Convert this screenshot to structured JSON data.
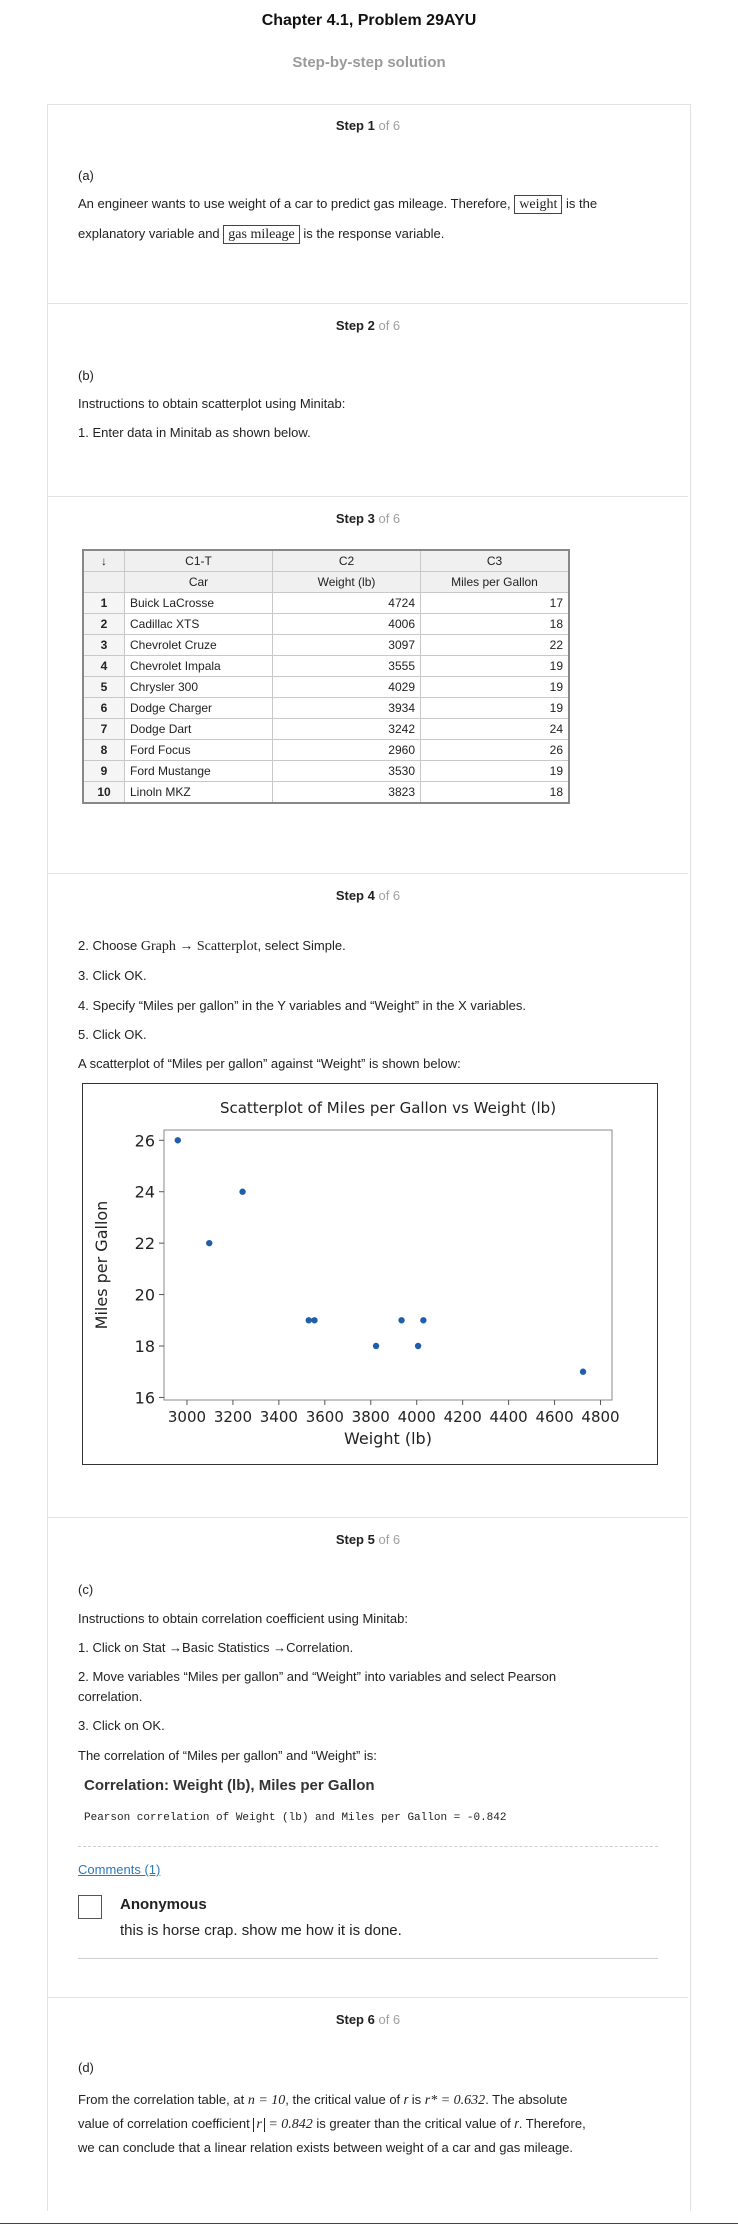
{
  "header": {
    "title": "Chapter 4.1, Problem 29AYU",
    "subtitle": "Step-by-step solution"
  },
  "steps": [
    {
      "num": "Step 1",
      "of": "of 6"
    },
    {
      "num": "Step 2",
      "of": "of 6"
    },
    {
      "num": "Step 3",
      "of": "of 6"
    },
    {
      "num": "Step 4",
      "of": "of 6"
    },
    {
      "num": "Step 5",
      "of": "of 6"
    },
    {
      "num": "Step 6",
      "of": "of 6"
    }
  ],
  "step1": {
    "part": "(a)",
    "t1": "An engineer wants to use weight of a car to predict gas mileage. Therefore,",
    "box1": "weight",
    "t2": "is the",
    "t3": "explanatory variable and",
    "box2": "gas mileage",
    "t4": "is the response variable."
  },
  "step2": {
    "part": "(b)",
    "line1": "Instructions to obtain scatterplot using Minitab:",
    "line2": "1. Enter data in Minitab as shown below."
  },
  "worksheet": {
    "corner": "↓",
    "col_ids": [
      "C1-T",
      "C2",
      "C3"
    ],
    "col_names": [
      "Car",
      "Weight (lb)",
      "Miles per Gallon"
    ],
    "rows": [
      {
        "n": "1",
        "car": "Buick LaCrosse",
        "weight": "4724",
        "mpg": "17"
      },
      {
        "n": "2",
        "car": "Cadillac XTS",
        "weight": "4006",
        "mpg": "18"
      },
      {
        "n": "3",
        "car": "Chevrolet Cruze",
        "weight": "3097",
        "mpg": "22"
      },
      {
        "n": "4",
        "car": "Chevrolet Impala",
        "weight": "3555",
        "mpg": "19"
      },
      {
        "n": "5",
        "car": "Chrysler 300",
        "weight": "4029",
        "mpg": "19"
      },
      {
        "n": "6",
        "car": "Dodge Charger",
        "weight": "3934",
        "mpg": "19"
      },
      {
        "n": "7",
        "car": "Dodge Dart",
        "weight": "3242",
        "mpg": "24"
      },
      {
        "n": "8",
        "car": "Ford Focus",
        "weight": "2960",
        "mpg": "26"
      },
      {
        "n": "9",
        "car": "Ford Mustange",
        "weight": "3530",
        "mpg": "19"
      },
      {
        "n": "10",
        "car": "Linoln MKZ",
        "weight": "3823",
        "mpg": "18"
      }
    ]
  },
  "step4": {
    "l1a": "2. Choose",
    "l1math_a": "Graph",
    "l1arrow": "→",
    "l1math_b": "Scatterplot",
    "l1b": ", select Simple.",
    "l2": "3. Click OK.",
    "l3": "4. Specify “Miles per gallon” in the Y variables and “Weight” in the X variables.",
    "l4": "5. Click OK.",
    "l5": "A scatterplot of “Miles per gallon” against “Weight” is shown below:"
  },
  "chart_data": {
    "type": "scatter",
    "title": "Scatterplot of Miles per Gallon vs Weight (lb)",
    "xlabel": "Weight (lb)",
    "ylabel": "Miles per Gallon",
    "xlim": [
      2900,
      4850
    ],
    "ylim": [
      15.9,
      26.4
    ],
    "xticks": [
      3000,
      3200,
      3400,
      3600,
      3800,
      4000,
      4200,
      4400,
      4600,
      4800
    ],
    "yticks": [
      16,
      18,
      20,
      22,
      24,
      26
    ],
    "grid": false,
    "color": "#1f5fa8",
    "series": [
      {
        "x": [
          4724,
          4006,
          3097,
          3555,
          4029,
          3934,
          3242,
          2960,
          3530,
          3823
        ],
        "y": [
          17,
          18,
          22,
          19,
          19,
          19,
          24,
          26,
          19,
          18
        ]
      }
    ]
  },
  "step5": {
    "part": "(c)",
    "l1": "Instructions to obtain correlation coefficient using Minitab:",
    "l2": "1. Click on Stat →Basic Statistics →Correlation.",
    "l3": "2. Move variables “Miles per gallon” and “Weight” into variables and select Pearson",
    "l3b": "correlation.",
    "l4": "3. Click on OK.",
    "l5": "The correlation of “Miles per gallon” and “Weight” is:",
    "corr_title": "Correlation: Weight (lb), Miles per Gallon",
    "corr_text": "Pearson correlation of Weight (lb) and Miles per Gallon = -0.842",
    "comments_link": "Comments (1)",
    "comment_author": "Anonymous",
    "comment_text": "this is horse crap. show me how it is done."
  },
  "step6": {
    "part": "(d)",
    "a1": "From the correlation table, at",
    "m1": "n = 10",
    "a2": ", the critical value of",
    "r": "r",
    "a3": "is",
    "m2": "r* = 0.632",
    "a4": ". The absolute",
    "b1": "value of correlation coefficient",
    "m3_abs": "r",
    "m3_val": "= 0.842",
    "b2": "is greater than the critical value of",
    "b3": ". Therefore,",
    "c1": "we can conclude that a linear relation exists between weight of a car and gas mileage."
  }
}
